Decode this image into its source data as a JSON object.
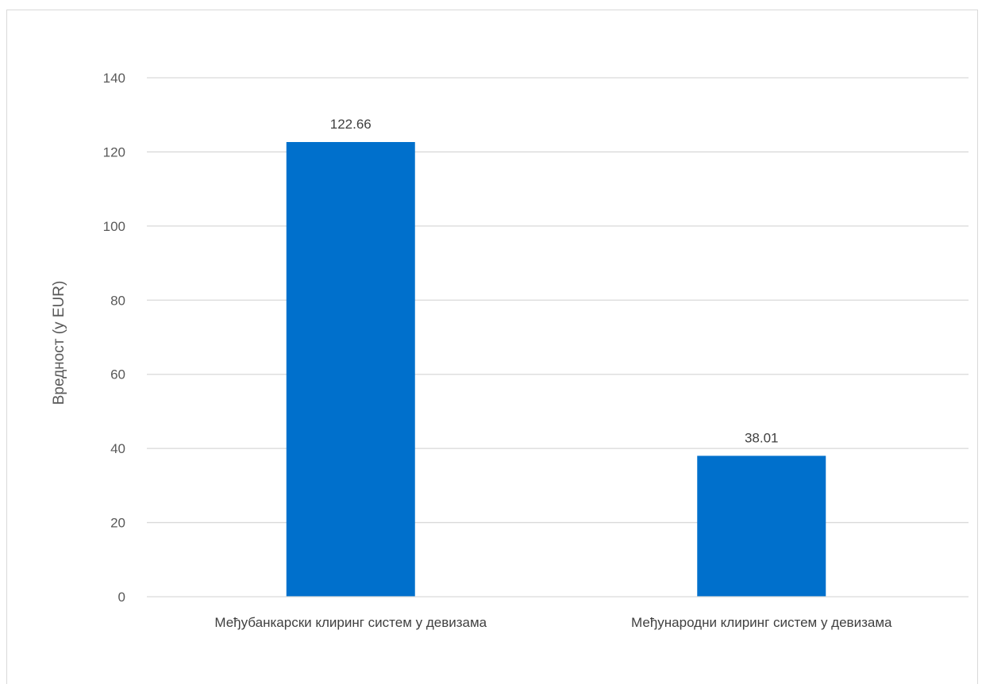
{
  "chart_data": {
    "type": "bar",
    "categories": [
      "Међубанкарски клиринг систем у девизама",
      "Међународни клиринг систем у девизама"
    ],
    "values": [
      122.66,
      38.01
    ],
    "data_labels": [
      "122.66",
      "38.01"
    ],
    "title": "",
    "xlabel": "",
    "ylabel": "Вредност (у EUR)",
    "ylim": [
      0,
      140
    ],
    "yticks": [
      0,
      20,
      40,
      60,
      80,
      100,
      120,
      140
    ],
    "grid": true,
    "legend": "none",
    "bar_color": "#0070CC",
    "gridline_color": "#d9d9d9",
    "axis_line_color": "#d9d9d9"
  }
}
